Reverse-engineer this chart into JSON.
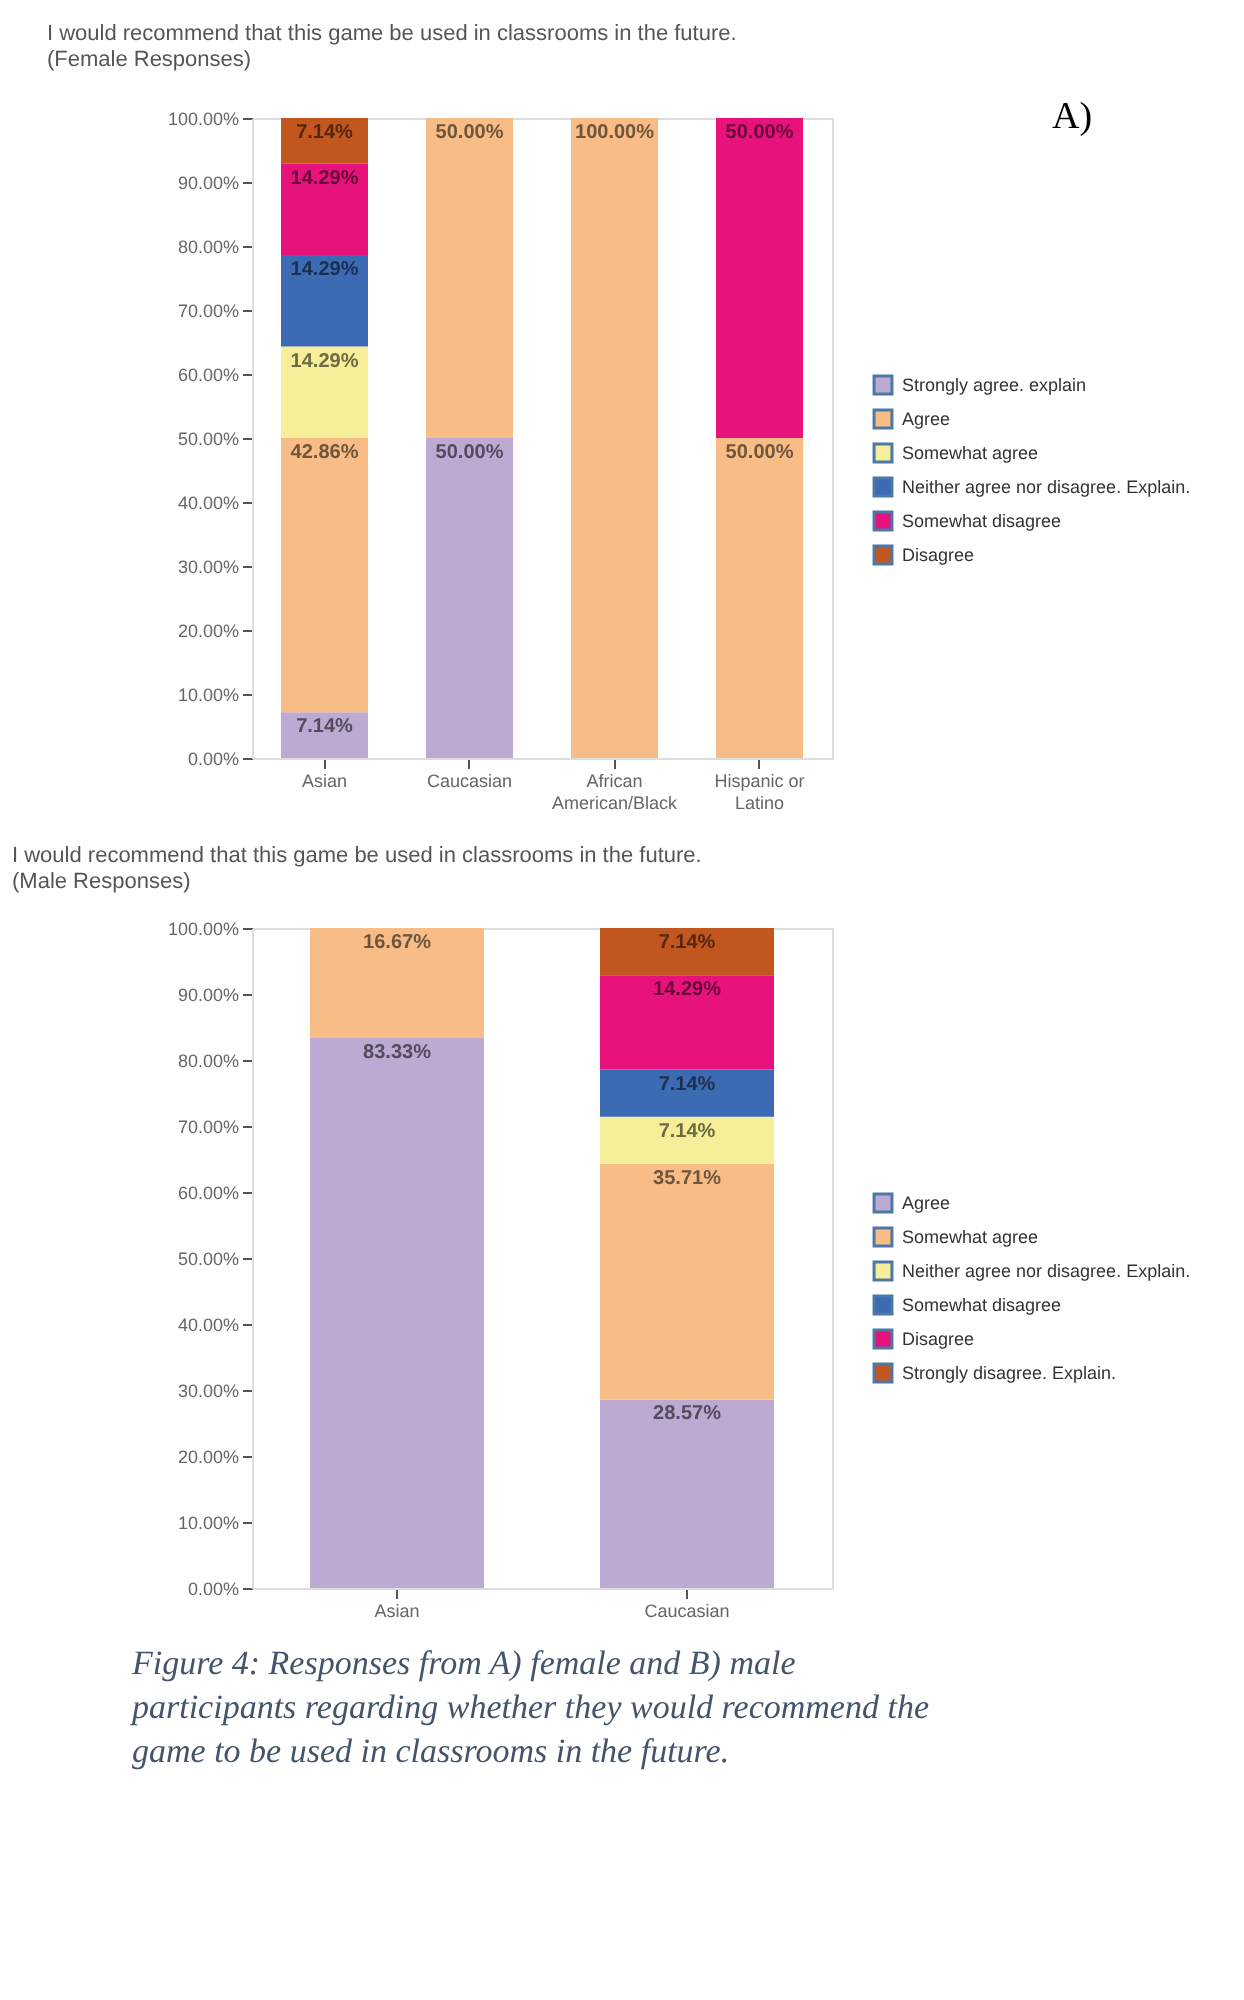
{
  "chart_data": [
    {
      "type": "bar",
      "stacked": true,
      "title": "I would recommend that this game be used in classrooms in the future. (Female Responses)",
      "categories": [
        "Asian",
        "Caucasian",
        "African American/Black",
        "Hispanic or Latino"
      ],
      "series": [
        {
          "name": "Strongly agree. explain",
          "color": "#bcaad2",
          "values": [
            7.14,
            50,
            null,
            null
          ],
          "value_labels": [
            "7.14%",
            "50.00%",
            null,
            null
          ]
        },
        {
          "name": "Agree",
          "color": "#f8bd86",
          "values": [
            42.86,
            50,
            100,
            50
          ],
          "value_labels": [
            "42.86%",
            "50.00%",
            "100.00%",
            "50.00%"
          ]
        },
        {
          "name": "Somewhat agree",
          "color": "#f6ee98",
          "values": [
            14.29,
            null,
            null,
            null
          ],
          "value_labels": [
            "14.29%",
            null,
            null,
            null
          ]
        },
        {
          "name": "Neither agree nor disagree. Explain.",
          "color": "#3d6bb3",
          "values": [
            14.29,
            null,
            null,
            null
          ],
          "value_labels": [
            "14.29%",
            null,
            null,
            null
          ]
        },
        {
          "name": "Somewhat disagree",
          "color": "#e8127d",
          "values": [
            14.29,
            null,
            null,
            50
          ],
          "value_labels": [
            "14.29%",
            null,
            null,
            "50.00%"
          ]
        },
        {
          "name": "Disagree",
          "color": "#c1561f",
          "values": [
            7.14,
            null,
            null,
            null
          ],
          "value_labels": [
            "7.14%",
            null,
            null,
            null
          ]
        }
      ],
      "ylim": [
        0,
        100
      ],
      "yticks": [
        {
          "value": 0,
          "label": "0.00%"
        },
        {
          "value": 10,
          "label": "10.00%"
        },
        {
          "value": 20,
          "label": "20.00%"
        },
        {
          "value": 30,
          "label": "30.00%"
        },
        {
          "value": 40,
          "label": "40.00%"
        },
        {
          "value": 50,
          "label": "50.00%"
        },
        {
          "value": 60,
          "label": "60.00%"
        },
        {
          "value": 70,
          "label": "70.00%"
        },
        {
          "value": 80,
          "label": "80.00%"
        },
        {
          "value": 90,
          "label": "90.00%"
        },
        {
          "value": 100,
          "label": "100.00%"
        }
      ],
      "grid": false,
      "legend": "right",
      "annotations": [
        "A)"
      ]
    },
    {
      "type": "bar",
      "stacked": true,
      "title": "I would recommend that this game be used in classrooms in the future. (Male Responses)",
      "categories": [
        "Asian",
        "Caucasian"
      ],
      "series": [
        {
          "name": "Agree",
          "color": "#bcaad2",
          "values": [
            83.33,
            28.57
          ],
          "value_labels": [
            "83.33%",
            "28.57%"
          ]
        },
        {
          "name": "Somewhat agree",
          "color": "#f8bd86",
          "values": [
            16.67,
            35.71
          ],
          "value_labels": [
            "16.67%",
            "35.71%"
          ]
        },
        {
          "name": "Neither agree nor disagree. Explain.",
          "color": "#f6ee98",
          "values": [
            null,
            7.14
          ],
          "value_labels": [
            null,
            "7.14%"
          ]
        },
        {
          "name": "Somewhat disagree",
          "color": "#3d6bb3",
          "values": [
            null,
            7.14
          ],
          "value_labels": [
            null,
            "7.14%"
          ]
        },
        {
          "name": "Disagree",
          "color": "#e8127d",
          "values": [
            null,
            14.29
          ],
          "value_labels": [
            null,
            "14.29%"
          ]
        },
        {
          "name": "Strongly disagree. Explain.",
          "color": "#c1561f",
          "values": [
            null,
            7.14
          ],
          "value_labels": [
            null,
            "7.14%"
          ]
        }
      ],
      "ylim": [
        0,
        100
      ],
      "yticks": [
        {
          "value": 0,
          "label": "0.00%"
        },
        {
          "value": 10,
          "label": "10.00%"
        },
        {
          "value": 20,
          "label": "20.00%"
        },
        {
          "value": 30,
          "label": "30.00%"
        },
        {
          "value": 40,
          "label": "40.00%"
        },
        {
          "value": 50,
          "label": "50.00%"
        },
        {
          "value": 60,
          "label": "60.00%"
        },
        {
          "value": 70,
          "label": "70.00%"
        },
        {
          "value": 80,
          "label": "80.00%"
        },
        {
          "value": 90,
          "label": "90.00%"
        },
        {
          "value": 100,
          "label": "100.00%"
        }
      ],
      "grid": false,
      "legend": "right",
      "annotations": [
        "Figure 4: Responses from A) female and B) male participants regarding whether they would recommend the game to be used in classrooms in the future."
      ]
    }
  ]
}
